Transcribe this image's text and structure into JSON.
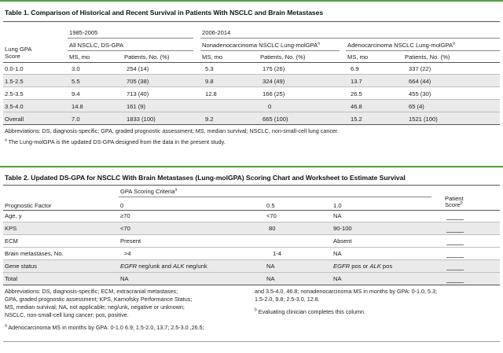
{
  "table1": {
    "title": "Table 1. Comparison of Historical and Recent Survival in Patients With NSCLC and Brain Metastases",
    "period_a": "1985-2005",
    "period_b": "2006-2014",
    "row_header_line1": "Lung GPA",
    "row_header_line2": "Score",
    "group_a": "All NSCLC, DS-GPA",
    "group_b": "Nonadenocarcinoma NSCLC Lung-molGPA",
    "group_b_sup": "a",
    "group_c": "Adenocarcinoma NSCLC Lung-molGPA",
    "group_c_sup": "a",
    "col_ms": "MS, mo",
    "col_patients": "Patients, No. (%)",
    "rows": [
      {
        "score": "0.0-1.0",
        "a_ms": "3.0",
        "a_pt": "254 (14)",
        "b_ms": "5.3",
        "b_pt": "175 (26)",
        "c_ms": "6.9",
        "c_pt": "337 (22)"
      },
      {
        "score": "1.5-2.5",
        "a_ms": "5.5",
        "a_pt": "705 (38)",
        "b_ms": "9.8",
        "b_pt": "324 (49)",
        "c_ms": "13.7",
        "c_pt": "664 (44)"
      },
      {
        "score": "2.5-3.5",
        "a_ms": "9.4",
        "a_pt": "713 (40)",
        "b_ms": "12.8",
        "b_pt": "166 (25)",
        "c_ms": "26.5",
        "c_pt": "455 (30)"
      },
      {
        "score": "3.5-4.0",
        "a_ms": "14.8",
        "a_pt": "161 (9)",
        "b_ms": "",
        "b_pt": "0",
        "c_ms": "46.8",
        "c_pt": "65 (4)"
      },
      {
        "score": "Overall",
        "a_ms": "7.0",
        "a_pt": "1833 (100)",
        "b_ms": "9.2",
        "b_pt": "665 (100)",
        "c_ms": "15.2",
        "c_pt": "1521 (100)"
      }
    ],
    "footnote_abbrev": "Abbreviations: DS, diagnosis-specific; GPA, graded prognostic assessment; MS, median survival; NSCLC, non-small-cell lung cancer.",
    "footnote_a_mark": "a",
    "footnote_a": " The Lung-molGPA is the updated DS-GPA designed from the data in the present study."
  },
  "table2": {
    "title": "Table 2. Updated DS-GPA for NSCLC With Brain Metastases (Lung-molGPA) Scoring Chart and Worksheet to Estimate Survival",
    "criteria_header": "GPA Scoring Criteria",
    "criteria_sup": "a",
    "col_factor": "Prognostic Factor",
    "col_0": "0",
    "col_05": "0.5",
    "col_10": "1.0",
    "col_patient_line1": "Patient",
    "col_patient_line2": "Score",
    "col_patient_sup": "b",
    "rows": [
      {
        "factor": "Age, y",
        "v0": "≥70",
        "v05": "<70",
        "v10": "NA"
      },
      {
        "factor": "KPS",
        "v0": "<70",
        "v05": "80",
        "v10": "90-100"
      },
      {
        "factor": "ECM",
        "v0": "Present",
        "v05": "",
        "v10": "Absent"
      },
      {
        "factor": "Brain metastases, No.",
        "v0": ">4",
        "v05": "1-4",
        "v10": "NA"
      },
      {
        "factor": "Gene status",
        "v0_i1": "EGFR",
        "v0_t1": " neg/unk and ",
        "v0_i2": "ALK",
        "v0_t2": " neg/unk",
        "v05": "NA",
        "v10_i1": "EGFR",
        "v10_t1": " pos or ",
        "v10_i2": "ALK",
        "v10_t2": " pos"
      },
      {
        "factor": "Total",
        "v0": "NA",
        "v05": "NA",
        "v10": "NA"
      }
    ],
    "fn_left_1": "Abbreviations: DS, diagnosis-specific; ECM, extracranial metastases;",
    "fn_left_2": "GPA, graded prognostic assessment; KPS, Karnofsky Performance Status;",
    "fn_left_3": "MS, median survival; NA, not applicable; neg/unk, negative or unknown;",
    "fn_left_4": "NSCLC, non-small-cell lung cancer; pos, positive.",
    "fn_a_mark": "a",
    "fn_a": " Adenocarcinoma MS in months by GPA: 0-1.0 6.9; 1.5-2.0, 13.7; 2.5-3.0 ,26.5;",
    "fn_right_1": "and 3.5-4.0, 46.8; nonadenocarcinoma MS in months by GPA: 0-1.0, 5.3;",
    "fn_right_2": "1.5-2.0, 9.8; 2.5-3.0, 12.8.",
    "fn_b_mark": "b",
    "fn_b": " Evaluating clinician completes this column."
  }
}
